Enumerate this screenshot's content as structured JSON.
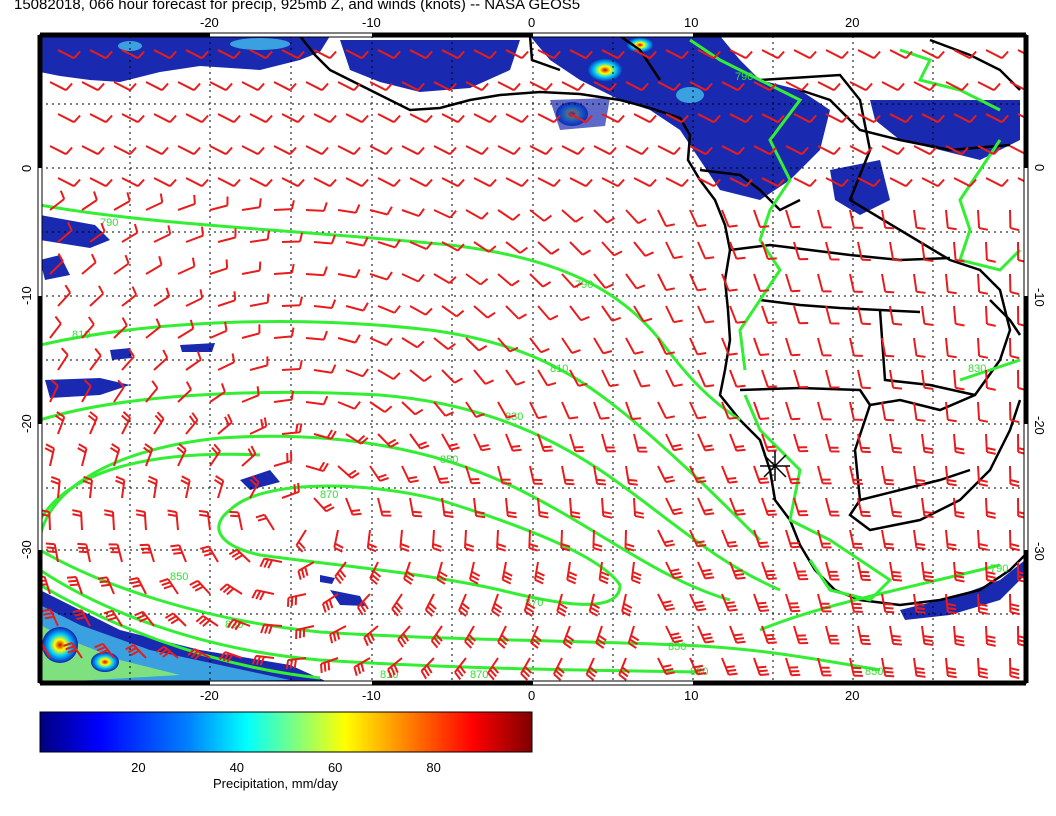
{
  "title": "15082018, 066 hour forecast for precip, 925mb Z, and winds (knots) -- NASA GEOS5",
  "map": {
    "lon_ticks_top": [
      "-20",
      "-10",
      "0",
      "10",
      "20"
    ],
    "lon_ticks_bottom": [
      "-20",
      "-10",
      "0",
      "10",
      "20"
    ],
    "lat_ticks_left": [
      "0",
      "-10",
      "-20",
      "-30"
    ],
    "lat_ticks_right": [
      "0",
      "-10",
      "-20",
      "-30"
    ],
    "contour_labels": [
      "790",
      "790",
      "810",
      "810",
      "830",
      "850",
      "870",
      "870",
      "850",
      "830",
      "830",
      "850",
      "870",
      "810",
      "850",
      "790",
      "790",
      "830"
    ],
    "colors": {
      "contour": "#33ee33",
      "wind_barb": "#e81c1c",
      "coastline": "#000000",
      "grid": "#000000"
    }
  },
  "colorbar": {
    "ticks": [
      "20",
      "40",
      "60",
      "80"
    ],
    "label": "Precipitation, mm/day",
    "range": [
      0,
      100
    ],
    "colors": [
      "#00007f",
      "#0000ff",
      "#007fff",
      "#00ffff",
      "#7fff7f",
      "#ffff00",
      "#ff7f00",
      "#ff0000",
      "#7f0000"
    ]
  }
}
